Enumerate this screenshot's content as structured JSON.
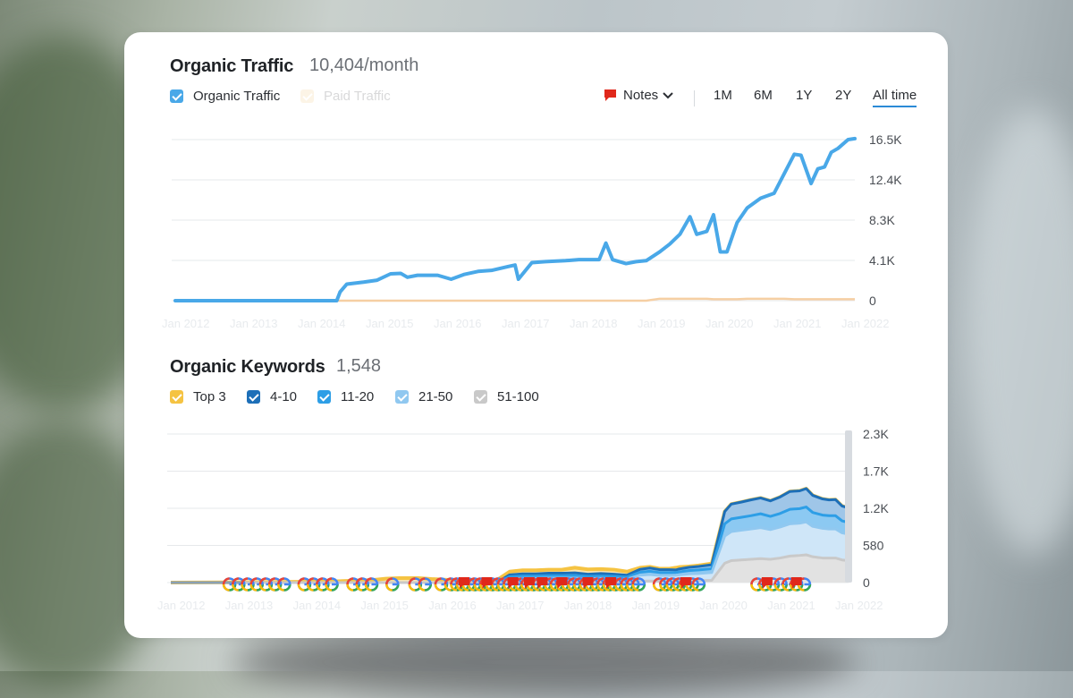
{
  "traffic": {
    "title": "Organic Traffic",
    "value": "10,404/month",
    "legend": [
      {
        "label": "Organic Traffic",
        "color": "#49a8e8",
        "checked": true
      },
      {
        "label": "Paid Traffic",
        "color": "#f3c77a",
        "checked": false
      }
    ]
  },
  "controls": {
    "notes_label": "Notes",
    "ranges": [
      "1M",
      "6M",
      "1Y",
      "2Y",
      "All time"
    ],
    "active_range": "All time"
  },
  "keywords": {
    "title": "Organic Keywords",
    "value": "1,548",
    "legend": [
      {
        "label": "Top 3",
        "color": "#f5c342"
      },
      {
        "label": "4-10",
        "color": "#1d6fb8"
      },
      {
        "label": "11-20",
        "color": "#2d9ee6"
      },
      {
        "label": "21-50",
        "color": "#90c8f0"
      },
      {
        "label": "51-100",
        "color": "#c9c9c9"
      }
    ]
  },
  "chart_data": [
    {
      "type": "line",
      "title": "Organic Traffic",
      "x_ticks": [
        "Jan 2012",
        "Jan 2013",
        "Jan 2014",
        "Jan 2015",
        "Jan 2016",
        "Jan 2017",
        "Jan 2018",
        "Jan 2019",
        "Jan 2020",
        "Jan 2021",
        "Jan 2022"
      ],
      "y_ticks": [
        "0",
        "4.1K",
        "8.3K",
        "12.4K",
        "16.5K"
      ],
      "ylim": [
        0,
        16500
      ],
      "x": [
        2012.0,
        2014.4,
        2014.45,
        2014.55,
        2014.8,
        2015.0,
        2015.2,
        2015.35,
        2015.45,
        2015.6,
        2015.9,
        2016.1,
        2016.3,
        2016.5,
        2016.7,
        2016.95,
        2017.05,
        2017.1,
        2017.3,
        2017.5,
        2017.8,
        2018.0,
        2018.3,
        2018.4,
        2018.5,
        2018.7,
        2018.85,
        2019.0,
        2019.2,
        2019.35,
        2019.5,
        2019.65,
        2019.75,
        2019.9,
        2020.0,
        2020.1,
        2020.2,
        2020.35,
        2020.5,
        2020.7,
        2020.9,
        2021.05,
        2021.2,
        2021.3,
        2021.45,
        2021.55,
        2021.65,
        2021.75,
        2021.85,
        2022.0,
        2022.1
      ],
      "series": [
        {
          "values": [
            0,
            0,
            900,
            1700,
            1900,
            2100,
            2750,
            2800,
            2400,
            2600,
            2600,
            2200,
            2700,
            3000,
            3100,
            3500,
            3650,
            2200,
            3900,
            4000,
            4100,
            4200,
            4200,
            5900,
            4200,
            3800,
            4000,
            4100,
            5000,
            5800,
            6800,
            8600,
            6800,
            7100,
            8800,
            5000,
            5000,
            8000,
            9500,
            10500,
            11000,
            13000,
            15000,
            14900,
            12000,
            13500,
            13700,
            15200,
            15600,
            16500,
            16600
          ]
        },
        {
          "values": [
            0,
            0,
            0,
            0,
            0,
            0,
            0,
            0,
            0,
            0,
            0,
            0,
            0,
            0,
            0,
            0,
            0,
            0,
            0,
            0,
            0,
            0,
            0,
            0,
            0,
            0,
            0,
            0,
            200,
            200,
            200,
            200,
            200,
            200,
            150,
            150,
            150,
            150,
            200,
            200,
            200,
            200,
            150,
            150,
            150,
            150,
            150,
            150,
            150,
            150,
            150
          ]
        }
      ]
    },
    {
      "type": "area",
      "title": "Organic Keywords",
      "x_ticks": [
        "Jan 2012",
        "Jan 2013",
        "Jan 2014",
        "Jan 2015",
        "Jan 2016",
        "Jan 2017",
        "Jan 2018",
        "Jan 2019",
        "Jan 2020",
        "Jan 2021",
        "Jan 2022"
      ],
      "y_ticks": [
        "0",
        "580",
        "1.2K",
        "1.7K",
        "2.3K"
      ],
      "ylim": [
        0,
        2300
      ],
      "x": [
        2012.0,
        2013.1,
        2014.4,
        2015.1,
        2015.3,
        2015.5,
        2015.8,
        2016.0,
        2016.3,
        2016.5,
        2016.6,
        2016.9,
        2017.0,
        2017.2,
        2017.4,
        2017.6,
        2017.8,
        2018.0,
        2018.2,
        2018.4,
        2018.6,
        2018.8,
        2019.0,
        2019.2,
        2019.35,
        2019.5,
        2019.65,
        2019.75,
        2019.8,
        2019.95,
        2020.1,
        2020.3,
        2020.5,
        2020.6,
        2020.75,
        2020.9,
        2021.05,
        2021.2,
        2021.35,
        2021.5,
        2021.65,
        2021.75,
        2021.85,
        2022.0,
        2022.1,
        2022.2,
        2022.3,
        2022.4
      ],
      "series": [
        {
          "name": "Top 3",
          "values": [
            0,
            5,
            15,
            40,
            60,
            70,
            70,
            55,
            40,
            40,
            20,
            35,
            35,
            170,
            190,
            190,
            200,
            200,
            230,
            205,
            210,
            200,
            170,
            230,
            245,
            215,
            215,
            230,
            240,
            250,
            265,
            295,
            520,
            575,
            590,
            585,
            595,
            570,
            590,
            645,
            640,
            665,
            620,
            625,
            610,
            630,
            570,
            560
          ]
        },
        {
          "name": "4-10",
          "values": [
            0,
            0,
            0,
            0,
            0,
            0,
            0,
            0,
            0,
            0,
            0,
            0,
            0,
            30,
            35,
            35,
            40,
            40,
            40,
            35,
            40,
            35,
            30,
            45,
            50,
            45,
            45,
            40,
            45,
            50,
            55,
            60,
            190,
            230,
            235,
            245,
            245,
            240,
            255,
            275,
            275,
            285,
            265,
            250,
            245,
            250,
            230,
            225
          ]
        },
        {
          "name": "11-20",
          "values": [
            0,
            0,
            0,
            0,
            0,
            0,
            0,
            0,
            0,
            0,
            0,
            0,
            0,
            30,
            35,
            35,
            35,
            35,
            40,
            35,
            35,
            35,
            30,
            45,
            50,
            45,
            45,
            40,
            45,
            50,
            55,
            60,
            190,
            195,
            200,
            205,
            215,
            205,
            210,
            225,
            225,
            230,
            215,
            205,
            205,
            205,
            185,
            180
          ]
        },
        {
          "name": "21-50",
          "values": [
            0,
            0,
            0,
            0,
            0,
            0,
            0,
            0,
            0,
            0,
            0,
            0,
            0,
            60,
            65,
            65,
            70,
            70,
            70,
            60,
            65,
            60,
            55,
            95,
            100,
            90,
            90,
            95,
            100,
            110,
            110,
            120,
            420,
            450,
            460,
            470,
            480,
            460,
            480,
            500,
            500,
            510,
            470,
            460,
            450,
            450,
            420,
            410
          ]
        },
        {
          "name": "51-100",
          "values": [
            0,
            0,
            0,
            0,
            0,
            0,
            0,
            0,
            0,
            0,
            0,
            0,
            0,
            0,
            0,
            0,
            0,
            0,
            0,
            0,
            0,
            0,
            0,
            20,
            25,
            20,
            20,
            20,
            20,
            25,
            30,
            35,
            300,
            340,
            350,
            360,
            370,
            360,
            380,
            410,
            420,
            430,
            400,
            380,
            380,
            380,
            350,
            340
          ]
        }
      ]
    }
  ]
}
